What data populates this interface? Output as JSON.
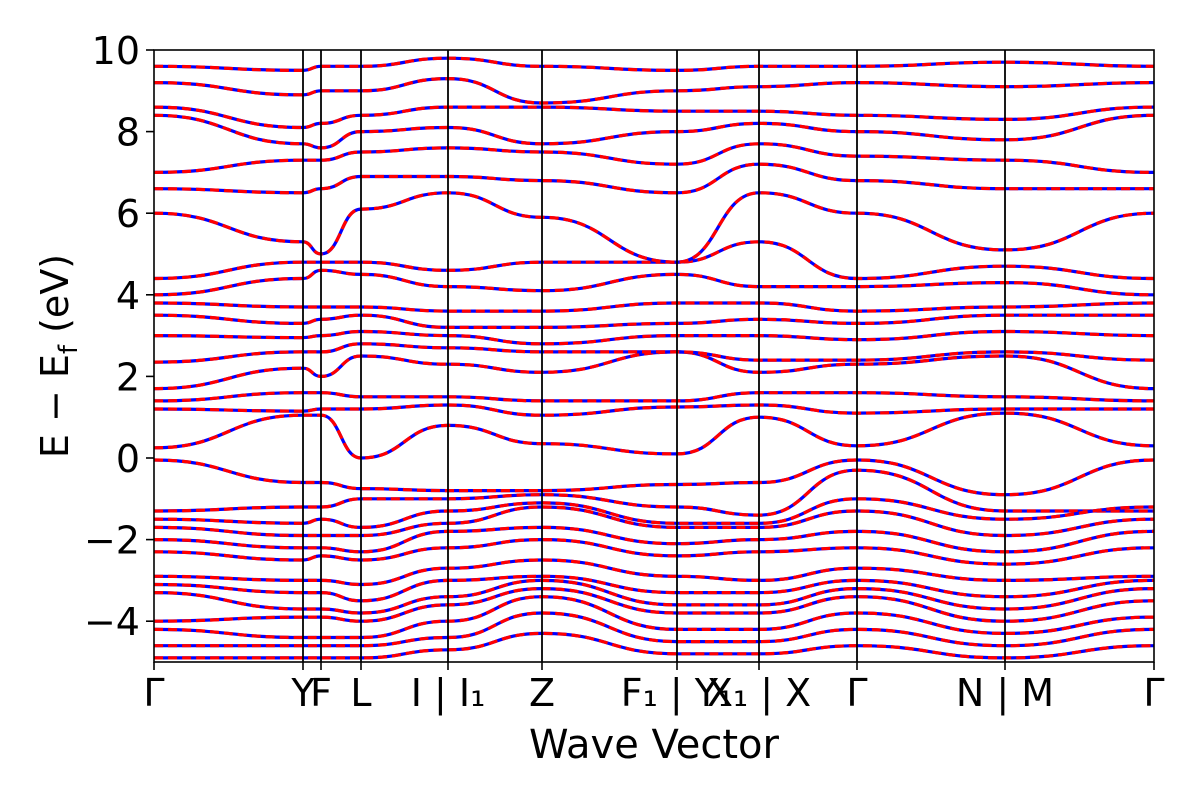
{
  "chart_data": {
    "type": "line",
    "title": "",
    "xlabel": "Wave Vector",
    "ylabel": "E − E",
    "ylabel_sub": "f",
    "ylabel_unit": " (eV)",
    "ylim": [
      -5,
      10
    ],
    "yticks": [
      {
        "value": 10,
        "label": "10"
      },
      {
        "value": 8,
        "label": "8"
      },
      {
        "value": 6,
        "label": "6"
      },
      {
        "value": 4,
        "label": "4"
      },
      {
        "value": 2,
        "label": "2"
      },
      {
        "value": 0,
        "label": "0"
      },
      {
        "value": -2,
        "label": "−2"
      },
      {
        "value": -4,
        "label": "−4"
      }
    ],
    "kpath_xlim": [
      0,
      1
    ],
    "kpoints": [
      {
        "pos": 0.0,
        "label": "Γ"
      },
      {
        "pos": 0.149,
        "label": "Y"
      },
      {
        "pos": 0.167,
        "label": "F"
      },
      {
        "pos": 0.207,
        "label": "L"
      },
      {
        "pos": 0.294,
        "label": "I | I₁"
      },
      {
        "pos": 0.388,
        "label": "Z"
      },
      {
        "pos": 0.523,
        "label": "F₁ | Y₁"
      },
      {
        "pos": 0.605,
        "label": "X₁ | X"
      },
      {
        "pos": 0.703,
        "label": "Γ"
      },
      {
        "pos": 0.851,
        "label": "N | M"
      },
      {
        "pos": 1.0,
        "label": "Γ"
      }
    ],
    "series_styles": [
      {
        "color": "#0000ff",
        "style": "solid"
      },
      {
        "color": "#ff0000",
        "style": "dashed"
      }
    ],
    "grid": false,
    "vertical_lines_at_kpoints": true,
    "bands_anchor_energies": [
      [
        -0.05,
        -0.6,
        -0.6,
        -0.75,
        -0.8,
        -0.8,
        -0.65,
        -0.6,
        -0.05,
        -0.9,
        -0.05
      ],
      [
        0.25,
        1.05,
        1.05,
        0.0,
        0.8,
        0.35,
        0.1,
        1.0,
        0.3,
        1.1,
        0.3
      ],
      [
        -1.3,
        -1.2,
        -1.2,
        -1.0,
        -1.0,
        -0.9,
        -1.2,
        -1.4,
        -0.3,
        -1.3,
        -1.3
      ],
      [
        -1.5,
        -1.6,
        -1.5,
        -1.7,
        -1.3,
        -1.1,
        -1.6,
        -1.6,
        -1.0,
        -1.5,
        -1.2
      ],
      [
        -1.7,
        -1.9,
        -1.9,
        -1.9,
        -1.6,
        -1.2,
        -1.7,
        -1.7,
        -1.3,
        -1.9,
        -1.5
      ],
      [
        -2.0,
        -2.2,
        -2.2,
        -2.3,
        -1.8,
        -1.7,
        -2.1,
        -2.0,
        -1.8,
        -2.3,
        -1.8
      ],
      [
        -2.3,
        -2.5,
        -2.4,
        -2.5,
        -2.2,
        -2.0,
        -2.4,
        -2.3,
        -2.2,
        -2.6,
        -2.2
      ],
      [
        -2.9,
        -3.0,
        -3.0,
        -3.1,
        -2.7,
        -2.5,
        -2.9,
        -3.0,
        -2.7,
        -3.0,
        -2.9
      ],
      [
        -3.1,
        -3.3,
        -3.3,
        -3.5,
        -3.0,
        -2.9,
        -3.3,
        -3.3,
        -3.0,
        -3.4,
        -3.0
      ],
      [
        -3.3,
        -3.7,
        -3.7,
        -3.8,
        -3.4,
        -3.0,
        -3.6,
        -3.6,
        -3.2,
        -3.7,
        -3.2
      ],
      [
        -4.0,
        -3.9,
        -3.9,
        -4.0,
        -3.6,
        -3.2,
        -3.8,
        -3.8,
        -3.4,
        -4.0,
        -3.5
      ],
      [
        -4.2,
        -4.4,
        -4.4,
        -4.4,
        -4.0,
        -3.4,
        -4.2,
        -4.2,
        -3.8,
        -4.3,
        -3.9
      ],
      [
        -4.6,
        -4.6,
        -4.6,
        -4.6,
        -4.4,
        -3.8,
        -4.5,
        -4.5,
        -4.2,
        -4.6,
        -4.2
      ],
      [
        -4.9,
        -4.9,
        -4.9,
        -4.9,
        -4.7,
        -4.3,
        -4.8,
        -4.8,
        -4.6,
        -4.9,
        -4.6
      ],
      [
        1.2,
        1.15,
        1.2,
        1.2,
        1.3,
        1.05,
        1.25,
        1.3,
        1.1,
        1.2,
        1.2
      ],
      [
        1.4,
        1.6,
        1.6,
        1.5,
        1.5,
        1.4,
        1.4,
        1.6,
        1.6,
        1.5,
        1.4
      ],
      [
        1.7,
        2.2,
        2.0,
        2.5,
        2.3,
        2.1,
        2.6,
        2.1,
        2.3,
        2.5,
        1.7
      ],
      [
        2.35,
        2.6,
        2.6,
        2.8,
        2.7,
        2.6,
        2.6,
        2.4,
        2.4,
        2.6,
        2.4
      ],
      [
        3.0,
        2.95,
        3.0,
        3.1,
        3.0,
        2.8,
        3.0,
        3.0,
        2.9,
        3.1,
        3.0
      ],
      [
        3.5,
        3.3,
        3.4,
        3.5,
        3.2,
        3.2,
        3.3,
        3.4,
        3.3,
        3.5,
        3.5
      ],
      [
        3.8,
        3.7,
        3.7,
        3.7,
        3.6,
        3.6,
        3.8,
        3.8,
        3.6,
        3.7,
        3.8
      ],
      [
        4.0,
        4.4,
        4.6,
        4.5,
        4.2,
        4.1,
        4.5,
        4.2,
        4.2,
        4.3,
        4.0
      ],
      [
        4.4,
        4.8,
        4.8,
        4.8,
        4.6,
        4.8,
        4.8,
        5.3,
        4.4,
        4.7,
        4.4
      ],
      [
        6.0,
        5.3,
        5.0,
        6.1,
        6.5,
        5.9,
        4.8,
        6.5,
        6.0,
        5.1,
        6.0
      ],
      [
        6.6,
        6.5,
        6.6,
        6.9,
        6.9,
        6.8,
        6.5,
        7.2,
        6.8,
        6.6,
        6.6
      ],
      [
        7.0,
        7.3,
        7.3,
        7.5,
        7.6,
        7.5,
        7.2,
        7.7,
        7.4,
        7.3,
        7.0
      ],
      [
        8.4,
        7.7,
        7.6,
        8.0,
        8.1,
        7.7,
        8.0,
        8.2,
        8.0,
        7.8,
        8.4
      ],
      [
        8.6,
        8.1,
        8.2,
        8.4,
        8.6,
        8.6,
        8.5,
        8.5,
        8.4,
        8.3,
        8.6
      ],
      [
        9.2,
        8.9,
        9.0,
        9.0,
        9.3,
        8.7,
        9.0,
        9.1,
        9.2,
        9.1,
        9.2
      ],
      [
        9.6,
        9.5,
        9.6,
        9.6,
        9.8,
        9.6,
        9.5,
        9.6,
        9.6,
        9.7,
        9.6
      ]
    ]
  }
}
